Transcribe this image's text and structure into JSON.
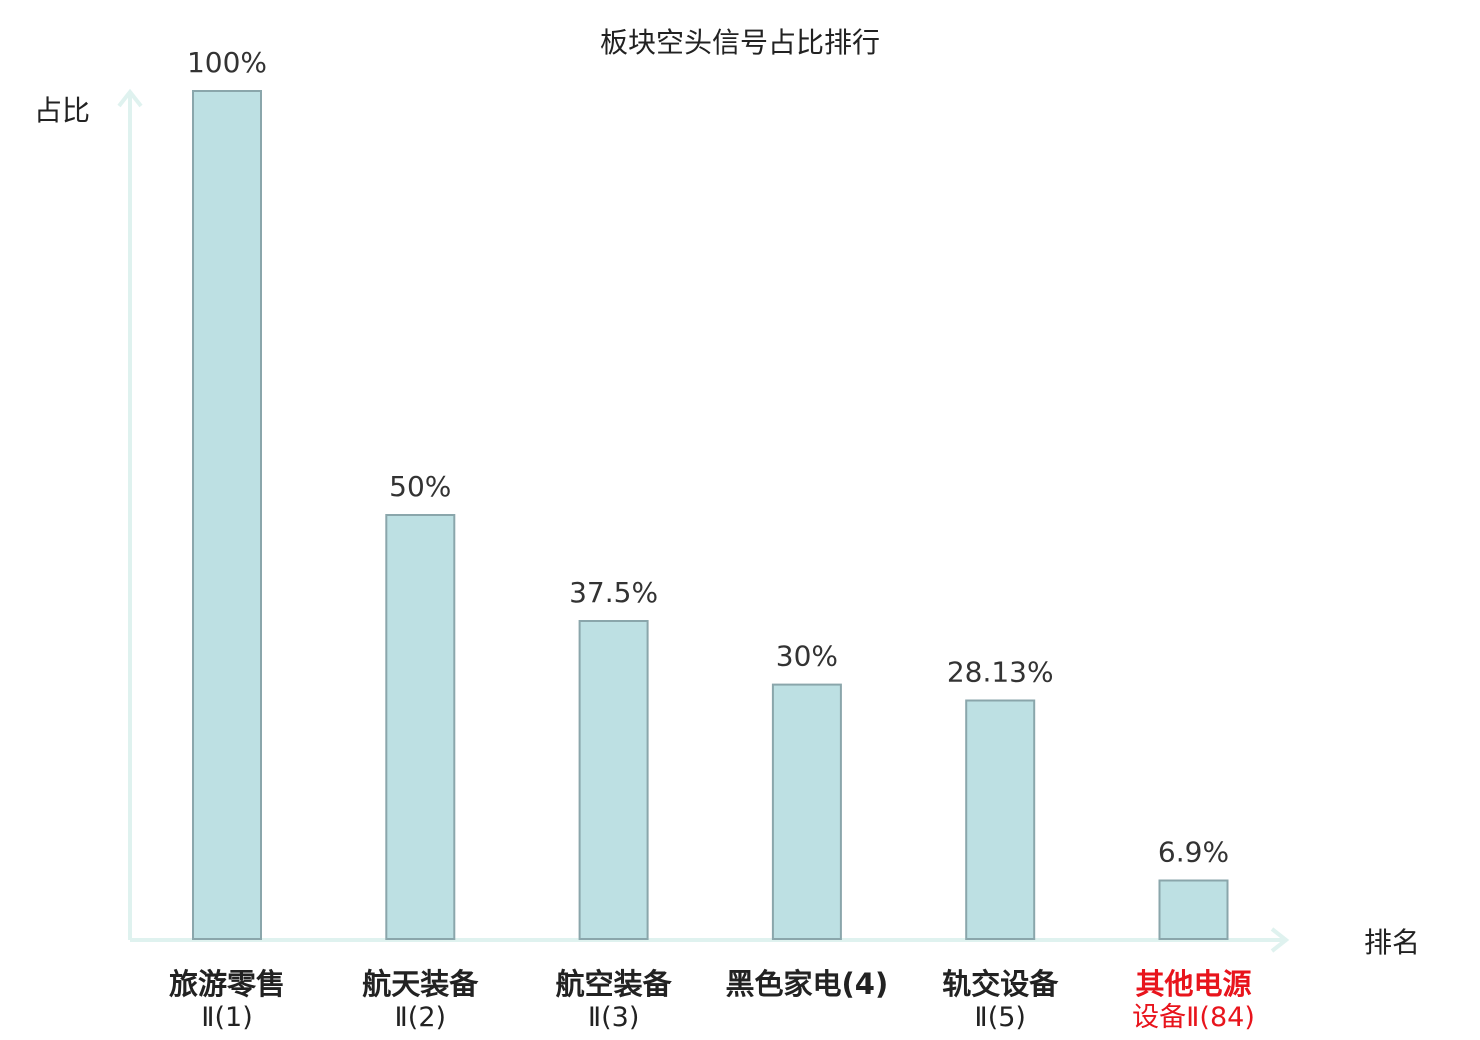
{
  "chart_data": {
    "type": "bar",
    "title": "板块空头信号占比排行",
    "ylabel": "占比",
    "xlabel": "排名",
    "ylim": [
      0,
      100
    ],
    "unit": "%",
    "categories": [
      {
        "line1": "旅游零售",
        "line2": "Ⅱ(1)",
        "highlight": false
      },
      {
        "line1": "航天装备",
        "line2": "Ⅱ(2)",
        "highlight": false
      },
      {
        "line1": "航空装备",
        "line2": "Ⅱ(3)",
        "highlight": false
      },
      {
        "line1": "黑色家电(4)",
        "line2": "",
        "highlight": false
      },
      {
        "line1": "轨交设备",
        "line2": "Ⅱ(5)",
        "highlight": false
      },
      {
        "line1": "其他电源",
        "line2": "设备Ⅱ(84)",
        "highlight": true
      }
    ],
    "values": [
      100,
      50,
      37.5,
      30,
      28.13,
      6.9
    ],
    "value_labels": [
      "100%",
      "50%",
      "37.5%",
      "30%",
      "28.13%",
      "6.9%"
    ],
    "grid": false,
    "colors": {
      "bar_fill": "#bde0e3",
      "bar_stroke": "#8aa6ab",
      "axis": "#dff2ef",
      "text": "#222222",
      "highlight": "#e8141c"
    }
  }
}
